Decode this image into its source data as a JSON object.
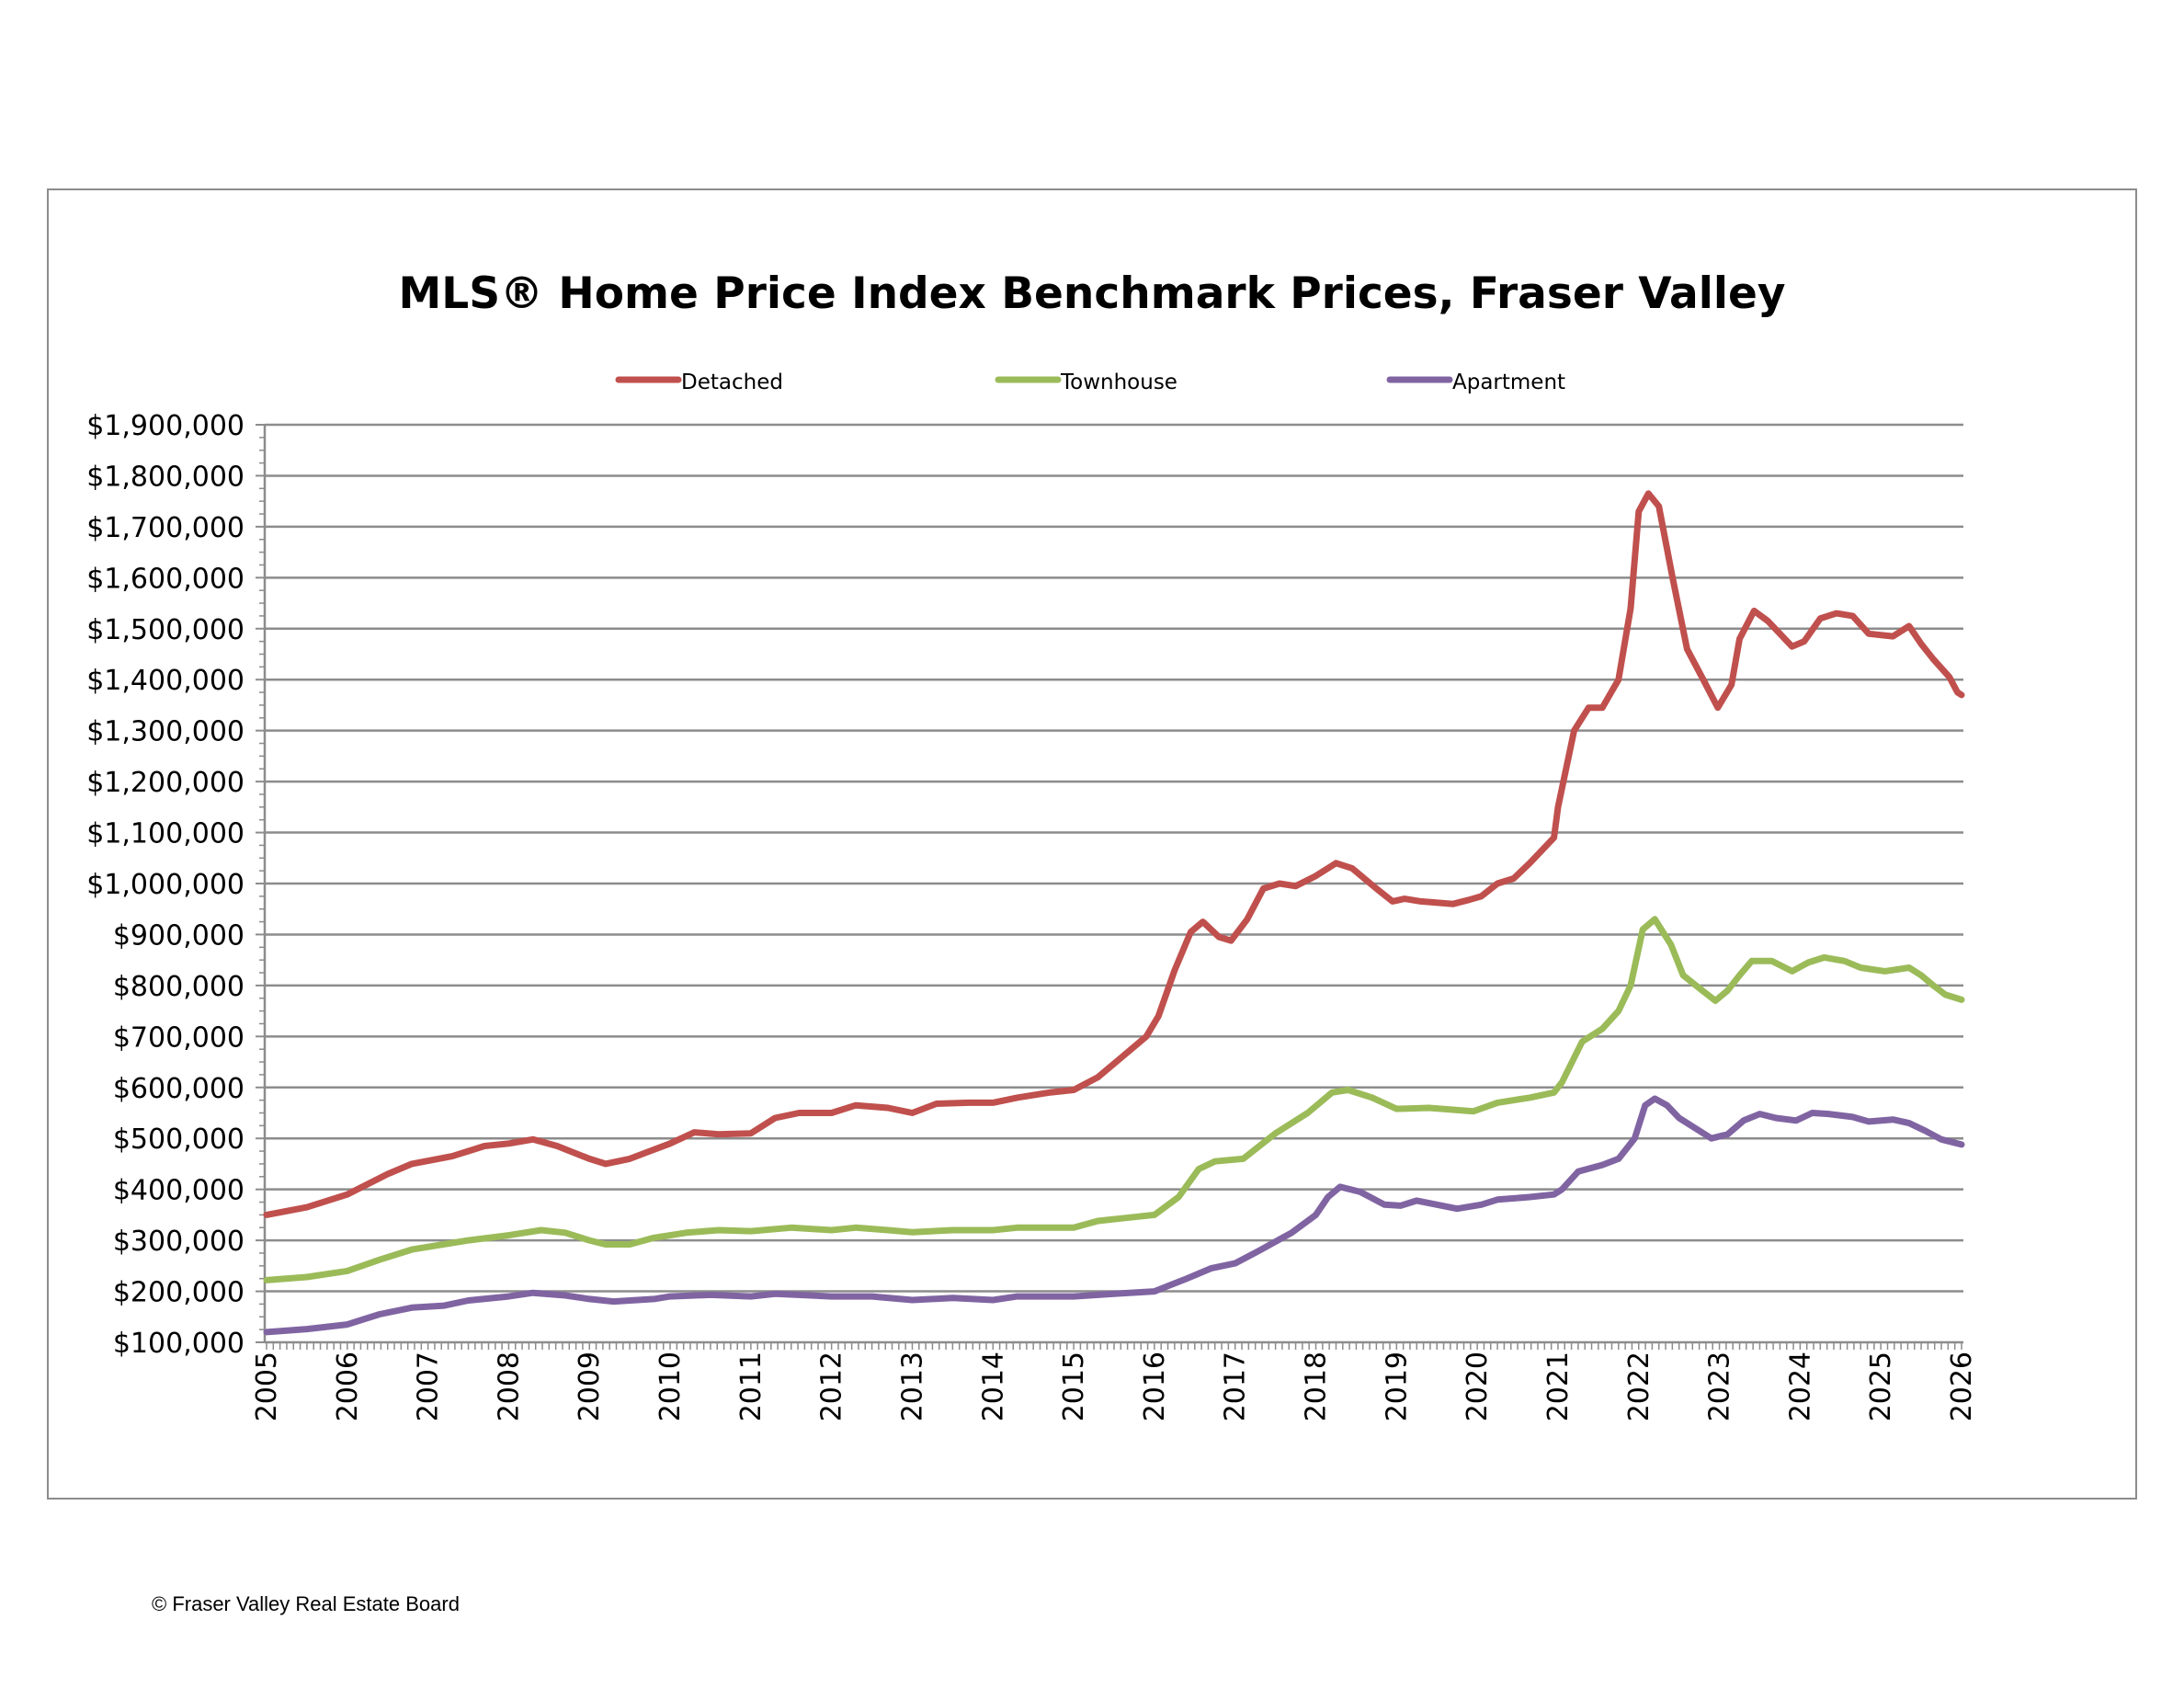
{
  "chart_data": {
    "type": "line",
    "title": "MLS® Home Price Index Benchmark Prices, Fraser Valley",
    "xlabel": "",
    "ylabel": "",
    "xlim": [
      2005,
      2026
    ],
    "ylim": [
      100000,
      1900000
    ],
    "x_ticks": [
      "2005",
      "2006",
      "2007",
      "2008",
      "2009",
      "2010",
      "2011",
      "2012",
      "2013",
      "2014",
      "2015",
      "2016",
      "2017",
      "2018",
      "2019",
      "2020",
      "2021",
      "2022",
      "2023",
      "2024",
      "2025",
      "2026"
    ],
    "y_ticks": [
      "$100,000",
      "$200,000",
      "$300,000",
      "$400,000",
      "$500,000",
      "$600,000",
      "$700,000",
      "$800,000",
      "$900,000",
      "$1,000,000",
      "$1,100,000",
      "$1,200,000",
      "$1,300,000",
      "$1,400,000",
      "$1,500,000",
      "$1,600,000",
      "$1,700,000",
      "$1,800,000",
      "$1,900,000"
    ],
    "grid": "horizontal major",
    "legend_position": "top",
    "series": [
      {
        "name": "Detached",
        "color": "#c0504d",
        "points": [
          [
            2005,
            350000
          ],
          [
            2005.5,
            365000
          ],
          [
            2006,
            390000
          ],
          [
            2006.5,
            430000
          ],
          [
            2006.8,
            450000
          ],
          [
            2007.3,
            465000
          ],
          [
            2007.7,
            485000
          ],
          [
            2008,
            490000
          ],
          [
            2008.3,
            498000
          ],
          [
            2008.6,
            485000
          ],
          [
            2009,
            460000
          ],
          [
            2009.2,
            450000
          ],
          [
            2009.5,
            460000
          ],
          [
            2009.8,
            478000
          ],
          [
            2010,
            490000
          ],
          [
            2010.3,
            512000
          ],
          [
            2010.6,
            508000
          ],
          [
            2011,
            510000
          ],
          [
            2011.3,
            540000
          ],
          [
            2011.6,
            550000
          ],
          [
            2012,
            550000
          ],
          [
            2012.3,
            565000
          ],
          [
            2012.7,
            560000
          ],
          [
            2013,
            550000
          ],
          [
            2013.3,
            568000
          ],
          [
            2013.7,
            570000
          ],
          [
            2014,
            570000
          ],
          [
            2014.3,
            580000
          ],
          [
            2014.7,
            590000
          ],
          [
            2015,
            595000
          ],
          [
            2015.3,
            620000
          ],
          [
            2015.6,
            660000
          ],
          [
            2015.9,
            700000
          ],
          [
            2016.05,
            740000
          ],
          [
            2016.25,
            830000
          ],
          [
            2016.45,
            905000
          ],
          [
            2016.6,
            925000
          ],
          [
            2016.8,
            895000
          ],
          [
            2016.95,
            888000
          ],
          [
            2017.15,
            930000
          ],
          [
            2017.35,
            990000
          ],
          [
            2017.55,
            1000000
          ],
          [
            2017.75,
            995000
          ],
          [
            2018,
            1015000
          ],
          [
            2018.25,
            1040000
          ],
          [
            2018.45,
            1030000
          ],
          [
            2018.75,
            990000
          ],
          [
            2018.95,
            965000
          ],
          [
            2019.1,
            970000
          ],
          [
            2019.3,
            965000
          ],
          [
            2019.7,
            960000
          ],
          [
            2019.9,
            968000
          ],
          [
            2020.05,
            975000
          ],
          [
            2020.25,
            1000000
          ],
          [
            2020.45,
            1010000
          ],
          [
            2020.65,
            1040000
          ],
          [
            2020.95,
            1090000
          ],
          [
            2021.0,
            1150000
          ],
          [
            2021.2,
            1300000
          ],
          [
            2021.38,
            1345000
          ],
          [
            2021.55,
            1345000
          ],
          [
            2021.75,
            1400000
          ],
          [
            2021.9,
            1540000
          ],
          [
            2022.0,
            1730000
          ],
          [
            2022.12,
            1765000
          ],
          [
            2022.25,
            1740000
          ],
          [
            2022.42,
            1600000
          ],
          [
            2022.6,
            1460000
          ],
          [
            2022.8,
            1400000
          ],
          [
            2022.98,
            1345000
          ],
          [
            2023.15,
            1390000
          ],
          [
            2023.25,
            1480000
          ],
          [
            2023.43,
            1535000
          ],
          [
            2023.6,
            1515000
          ],
          [
            2023.9,
            1465000
          ],
          [
            2024.05,
            1475000
          ],
          [
            2024.25,
            1520000
          ],
          [
            2024.45,
            1530000
          ],
          [
            2024.65,
            1525000
          ],
          [
            2024.85,
            1490000
          ],
          [
            2025.15,
            1485000
          ],
          [
            2025.35,
            1505000
          ],
          [
            2025.5,
            1470000
          ],
          [
            2025.65,
            1440000
          ],
          [
            2025.85,
            1405000
          ],
          [
            2025.95,
            1375000
          ],
          [
            2026.0,
            1370000
          ]
        ]
      },
      {
        "name": "Townhouse",
        "color": "#9bbb59",
        "points": [
          [
            2005,
            222000
          ],
          [
            2005.5,
            228000
          ],
          [
            2006,
            240000
          ],
          [
            2006.4,
            262000
          ],
          [
            2006.8,
            282000
          ],
          [
            2007.5,
            300000
          ],
          [
            2008,
            310000
          ],
          [
            2008.4,
            320000
          ],
          [
            2008.7,
            315000
          ],
          [
            2009,
            300000
          ],
          [
            2009.2,
            292000
          ],
          [
            2009.5,
            292000
          ],
          [
            2009.8,
            305000
          ],
          [
            2010.2,
            315000
          ],
          [
            2010.6,
            320000
          ],
          [
            2011,
            318000
          ],
          [
            2011.5,
            325000
          ],
          [
            2012,
            320000
          ],
          [
            2012.3,
            325000
          ],
          [
            2012.7,
            320000
          ],
          [
            2013,
            316000
          ],
          [
            2013.5,
            320000
          ],
          [
            2014,
            320000
          ],
          [
            2014.3,
            325000
          ],
          [
            2015,
            325000
          ],
          [
            2015.3,
            338000
          ],
          [
            2015.7,
            345000
          ],
          [
            2016,
            350000
          ],
          [
            2016.3,
            385000
          ],
          [
            2016.55,
            440000
          ],
          [
            2016.75,
            455000
          ],
          [
            2017.1,
            460000
          ],
          [
            2017.5,
            510000
          ],
          [
            2017.9,
            550000
          ],
          [
            2018.2,
            590000
          ],
          [
            2018.4,
            595000
          ],
          [
            2018.7,
            580000
          ],
          [
            2019,
            558000
          ],
          [
            2019.4,
            560000
          ],
          [
            2019.95,
            553000
          ],
          [
            2020.25,
            570000
          ],
          [
            2020.65,
            580000
          ],
          [
            2020.95,
            590000
          ],
          [
            2021.05,
            610000
          ],
          [
            2021.3,
            690000
          ],
          [
            2021.55,
            715000
          ],
          [
            2021.75,
            750000
          ],
          [
            2021.9,
            800000
          ],
          [
            2022.05,
            910000
          ],
          [
            2022.2,
            930000
          ],
          [
            2022.4,
            880000
          ],
          [
            2022.55,
            820000
          ],
          [
            2022.75,
            795000
          ],
          [
            2022.95,
            770000
          ],
          [
            2023.1,
            790000
          ],
          [
            2023.25,
            820000
          ],
          [
            2023.4,
            848000
          ],
          [
            2023.65,
            848000
          ],
          [
            2023.9,
            828000
          ],
          [
            2024.1,
            845000
          ],
          [
            2024.3,
            855000
          ],
          [
            2024.55,
            848000
          ],
          [
            2024.75,
            835000
          ],
          [
            2025.05,
            828000
          ],
          [
            2025.35,
            835000
          ],
          [
            2025.5,
            820000
          ],
          [
            2025.65,
            800000
          ],
          [
            2025.8,
            782000
          ],
          [
            2026.0,
            772000
          ]
        ]
      },
      {
        "name": "Apartment",
        "color": "#8064a2",
        "points": [
          [
            2005,
            120000
          ],
          [
            2005.5,
            126000
          ],
          [
            2006,
            135000
          ],
          [
            2006.4,
            155000
          ],
          [
            2006.8,
            168000
          ],
          [
            2007.2,
            172000
          ],
          [
            2007.5,
            182000
          ],
          [
            2008,
            190000
          ],
          [
            2008.3,
            197000
          ],
          [
            2008.7,
            192000
          ],
          [
            2009,
            185000
          ],
          [
            2009.3,
            180000
          ],
          [
            2009.8,
            185000
          ],
          [
            2010,
            190000
          ],
          [
            2010.5,
            193000
          ],
          [
            2011,
            190000
          ],
          [
            2011.3,
            195000
          ],
          [
            2012,
            190000
          ],
          [
            2012.5,
            190000
          ],
          [
            2013,
            183000
          ],
          [
            2013.5,
            187000
          ],
          [
            2014,
            183000
          ],
          [
            2014.3,
            190000
          ],
          [
            2015,
            190000
          ],
          [
            2015.5,
            195000
          ],
          [
            2016,
            200000
          ],
          [
            2016.4,
            225000
          ],
          [
            2016.7,
            245000
          ],
          [
            2017,
            255000
          ],
          [
            2017.3,
            280000
          ],
          [
            2017.7,
            315000
          ],
          [
            2018,
            350000
          ],
          [
            2018.15,
            385000
          ],
          [
            2018.3,
            405000
          ],
          [
            2018.55,
            395000
          ],
          [
            2018.85,
            370000
          ],
          [
            2019.05,
            368000
          ],
          [
            2019.25,
            378000
          ],
          [
            2019.75,
            362000
          ],
          [
            2020.05,
            370000
          ],
          [
            2020.25,
            380000
          ],
          [
            2020.65,
            385000
          ],
          [
            2020.95,
            390000
          ],
          [
            2021.05,
            400000
          ],
          [
            2021.25,
            435000
          ],
          [
            2021.55,
            448000
          ],
          [
            2021.75,
            460000
          ],
          [
            2021.95,
            500000
          ],
          [
            2022.08,
            565000
          ],
          [
            2022.2,
            578000
          ],
          [
            2022.35,
            565000
          ],
          [
            2022.5,
            540000
          ],
          [
            2022.7,
            520000
          ],
          [
            2022.9,
            500000
          ],
          [
            2023.1,
            508000
          ],
          [
            2023.3,
            535000
          ],
          [
            2023.5,
            548000
          ],
          [
            2023.7,
            540000
          ],
          [
            2023.95,
            535000
          ],
          [
            2024.15,
            550000
          ],
          [
            2024.35,
            548000
          ],
          [
            2024.65,
            542000
          ],
          [
            2024.85,
            533000
          ],
          [
            2025.15,
            537000
          ],
          [
            2025.35,
            530000
          ],
          [
            2025.55,
            515000
          ],
          [
            2025.75,
            498000
          ],
          [
            2026.0,
            488000
          ]
        ]
      }
    ]
  },
  "footer": "© Fraser Valley Real Estate Board"
}
